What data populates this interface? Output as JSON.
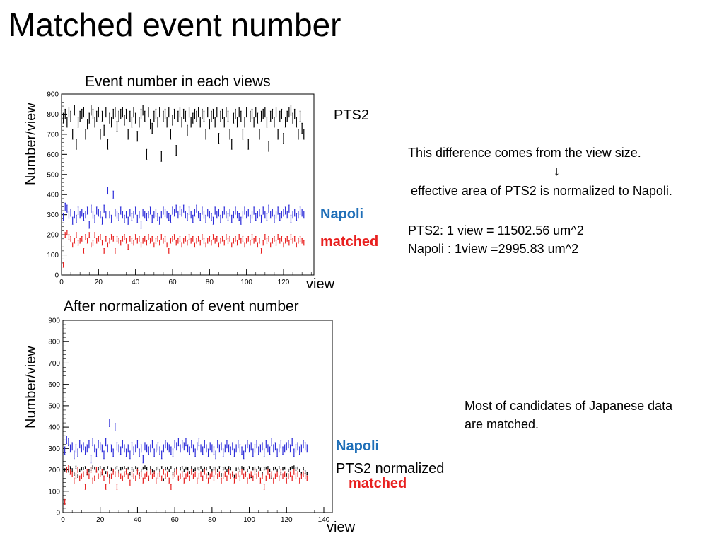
{
  "slide": {
    "title": "Matched event number",
    "top_plot_title": "Event number in each views",
    "bottom_plot_title": "After normalization of event number",
    "ylabel": "Number/view",
    "xlabel": "view",
    "top_legend": {
      "pts2": "PTS2",
      "napoli": "Napoli",
      "matched": "matched"
    },
    "bottom_legend": {
      "napoli": "Napoli",
      "pts2norm": "PTS2 normalized",
      "matched": "matched"
    },
    "note1": {
      "line1": "This difference comes from the view size.",
      "arrow": "↓",
      "line2": "effective area of PTS2 is normalized to Napoli.",
      "line3": "PTS2: 1 view = 11502.56 um^2",
      "line4": "Napoli : 1view =2995.83 um^2"
    },
    "note2": {
      "line1": "Most of candidates of Japanese data",
      "line2": "are matched."
    },
    "colors": {
      "pts2": "#000000",
      "napoli": "#2b2bd9",
      "matched": "#e8201f",
      "napoli_label": "#1f6fb8"
    }
  },
  "chart_data": [
    {
      "type": "scatter",
      "title": "Event number in each views",
      "xlabel": "view",
      "ylabel": "Number/view",
      "xlim": [
        0,
        140
      ],
      "ylim": [
        0,
        900
      ],
      "xticks": [
        0,
        20,
        40,
        60,
        80,
        100,
        120
      ],
      "yticks": [
        0,
        100,
        200,
        300,
        400,
        500,
        600,
        700,
        800,
        900
      ],
      "grid": false,
      "series": [
        {
          "name": "PTS2",
          "color": "#000000",
          "x_start": 1,
          "x_step": 1,
          "err": 25,
          "values": [
            780,
            800,
            760,
            810,
            790,
            700,
            820,
            650,
            760,
            790,
            800,
            810,
            700,
            750,
            780,
            820,
            800,
            760,
            790,
            810,
            700,
            790,
            720,
            810,
            650,
            780,
            760,
            800,
            810,
            740,
            790,
            800,
            810,
            770,
            800,
            700,
            790,
            760,
            810,
            780,
            690,
            760,
            800,
            820,
            790,
            600,
            810,
            750,
            730,
            790,
            800,
            760,
            810,
            590,
            790,
            800,
            760,
            810,
            700,
            770,
            800,
            620,
            790,
            810,
            760,
            800,
            790,
            720,
            810,
            760,
            780,
            800,
            790,
            810,
            760,
            800,
            790,
            700,
            810,
            750,
            790,
            800,
            760,
            810,
            680,
            790,
            800,
            760,
            810,
            790,
            700,
            650,
            780,
            800,
            760,
            810,
            790,
            700,
            760,
            810,
            650,
            790,
            800,
            760,
            810,
            780,
            700,
            790,
            800,
            810,
            760,
            640,
            790,
            800,
            760,
            810,
            700,
            790,
            800,
            680,
            760,
            790,
            810,
            820,
            780,
            800,
            760,
            700,
            790,
            730,
            700
          ]
        },
        {
          "name": "Napoli",
          "color": "#2b2bd9",
          "x_start": 1,
          "x_step": 1,
          "err": 18,
          "values": [
            290,
            340,
            330,
            300,
            310,
            270,
            300,
            280,
            320,
            300,
            310,
            290,
            300,
            320,
            250,
            330,
            300,
            280,
            320,
            310,
            300,
            270,
            330,
            300,
            420,
            300,
            280,
            400,
            310,
            300,
            290,
            320,
            300,
            280,
            300,
            270,
            310,
            290,
            300,
            320,
            280,
            300,
            250,
            310,
            300,
            290,
            300,
            320,
            280,
            300,
            310,
            290,
            270,
            300,
            320,
            310,
            300,
            290,
            280,
            320,
            310,
            330,
            300,
            320,
            310,
            330,
            300,
            290,
            320,
            300,
            280,
            310,
            330,
            300,
            290,
            320,
            300,
            280,
            310,
            300,
            290,
            270,
            320,
            300,
            310,
            280,
            300,
            320,
            300,
            290,
            310,
            280,
            300,
            320,
            300,
            290,
            270,
            300,
            320,
            300,
            310,
            280,
            300,
            320,
            290,
            300,
            310,
            280,
            320,
            300,
            290,
            330,
            300,
            310,
            280,
            300,
            320,
            290,
            300,
            310,
            320,
            300,
            330,
            280,
            300,
            310,
            290,
            300,
            320,
            310,
            300
          ]
        },
        {
          "name": "matched",
          "color": "#e8201f",
          "x_start": 1,
          "x_step": 1,
          "err": 12,
          "values": [
            50,
            200,
            210,
            190,
            180,
            150,
            170,
            200,
            160,
            170,
            180,
            120,
            190,
            170,
            200,
            150,
            160,
            200,
            170,
            180,
            190,
            160,
            120,
            180,
            150,
            170,
            190,
            180,
            120,
            180,
            170,
            160,
            180,
            190,
            170,
            140,
            180,
            170,
            160,
            190,
            170,
            180,
            150,
            170,
            180,
            160,
            190,
            170,
            180,
            150,
            170,
            180,
            160,
            190,
            170,
            180,
            150,
            120,
            170,
            180,
            190,
            160,
            170,
            180,
            150,
            170,
            180,
            160,
            190,
            170,
            180,
            150,
            170,
            180,
            160,
            190,
            170,
            150,
            170,
            180,
            160,
            190,
            170,
            180,
            150,
            170,
            180,
            160,
            190,
            170,
            180,
            150,
            170,
            180,
            160,
            190,
            170,
            180,
            150,
            170,
            180,
            160,
            190,
            170,
            180,
            150,
            170,
            120,
            160,
            190,
            170,
            180,
            150,
            170,
            180,
            160,
            190,
            170,
            180,
            150,
            170,
            180,
            160,
            190,
            170,
            180,
            150,
            170,
            180,
            170,
            160
          ]
        }
      ]
    },
    {
      "type": "scatter",
      "title": "After normalization of event number",
      "xlabel": "view",
      "ylabel": "Number/view",
      "xlim": [
        0,
        140
      ],
      "ylim": [
        0,
        900
      ],
      "xticks": [
        0,
        20,
        40,
        60,
        80,
        100,
        120,
        140
      ],
      "yticks": [
        0,
        100,
        200,
        300,
        400,
        500,
        600,
        700,
        800,
        900
      ],
      "grid": false,
      "series": [
        {
          "name": "Napoli",
          "color": "#2b2bd9",
          "x_start": 1,
          "x_step": 1,
          "err": 18,
          "values": [
            290,
            340,
            330,
            300,
            310,
            270,
            300,
            280,
            320,
            300,
            310,
            290,
            300,
            320,
            250,
            330,
            300,
            280,
            320,
            310,
            300,
            270,
            330,
            300,
            420,
            300,
            280,
            400,
            310,
            300,
            290,
            320,
            300,
            280,
            300,
            270,
            310,
            290,
            300,
            320,
            280,
            300,
            250,
            310,
            300,
            290,
            300,
            320,
            280,
            300,
            310,
            290,
            270,
            300,
            320,
            310,
            300,
            290,
            280,
            320,
            310,
            330,
            300,
            320,
            310,
            330,
            300,
            290,
            320,
            300,
            280,
            310,
            330,
            300,
            290,
            320,
            300,
            280,
            310,
            300,
            290,
            270,
            320,
            300,
            310,
            280,
            300,
            320,
            300,
            290,
            310,
            280,
            300,
            320,
            300,
            290,
            270,
            300,
            320,
            300,
            310,
            280,
            300,
            320,
            290,
            300,
            310,
            280,
            320,
            300,
            290,
            330,
            300,
            310,
            280,
            300,
            320,
            290,
            300,
            310,
            320,
            300,
            330,
            280,
            300,
            310,
            290,
            300,
            320,
            310,
            300
          ]
        },
        {
          "name": "PTS2 normalized",
          "color": "#000000",
          "x_start": 1,
          "x_step": 1,
          "err": 6,
          "values": [
            200,
            205,
            195,
            210,
            200,
            180,
            212,
            170,
            198,
            205,
            207,
            210,
            182,
            195,
            203,
            213,
            208,
            198,
            205,
            210,
            182,
            205,
            187,
            210,
            170,
            203,
            198,
            208,
            210,
            192,
            205,
            208,
            210,
            200,
            208,
            182,
            205,
            198,
            210,
            203,
            180,
            198,
            208,
            213,
            205,
            156,
            210,
            195,
            190,
            205,
            208,
            198,
            210,
            153,
            205,
            208,
            198,
            210,
            182,
            200,
            208,
            161,
            205,
            210,
            198,
            208,
            205,
            187,
            210,
            198,
            203,
            208,
            205,
            210,
            198,
            208,
            205,
            182,
            210,
            195,
            205,
            208,
            198,
            210,
            177,
            205,
            208,
            198,
            210,
            205,
            182,
            169,
            203,
            208,
            198,
            210,
            205,
            182,
            198,
            210,
            169,
            205,
            208,
            198,
            210,
            203,
            182,
            205,
            208,
            210,
            198,
            166,
            205,
            208,
            198,
            210,
            182,
            205,
            208,
            177,
            198,
            205,
            210,
            213,
            203,
            208,
            198,
            182,
            205,
            190,
            182
          ]
        },
        {
          "name": "matched",
          "color": "#e8201f",
          "x_start": 1,
          "x_step": 1,
          "err": 12,
          "values": [
            50,
            200,
            210,
            190,
            180,
            150,
            170,
            200,
            160,
            170,
            180,
            120,
            190,
            170,
            200,
            150,
            160,
            200,
            170,
            180,
            190,
            160,
            120,
            180,
            150,
            170,
            190,
            180,
            120,
            180,
            170,
            160,
            180,
            190,
            170,
            140,
            180,
            170,
            160,
            190,
            170,
            180,
            150,
            170,
            180,
            160,
            190,
            170,
            180,
            150,
            170,
            180,
            160,
            190,
            170,
            180,
            150,
            120,
            170,
            180,
            190,
            160,
            170,
            180,
            150,
            170,
            180,
            160,
            190,
            170,
            180,
            150,
            170,
            180,
            160,
            190,
            170,
            150,
            170,
            180,
            160,
            190,
            170,
            180,
            150,
            170,
            180,
            160,
            190,
            170,
            180,
            150,
            170,
            180,
            160,
            190,
            170,
            180,
            150,
            170,
            180,
            160,
            190,
            170,
            180,
            150,
            170,
            120,
            160,
            190,
            170,
            180,
            150,
            170,
            180,
            160,
            190,
            170,
            180,
            150,
            170,
            180,
            160,
            190,
            170,
            180,
            150,
            170,
            180,
            170,
            160
          ]
        }
      ]
    }
  ]
}
